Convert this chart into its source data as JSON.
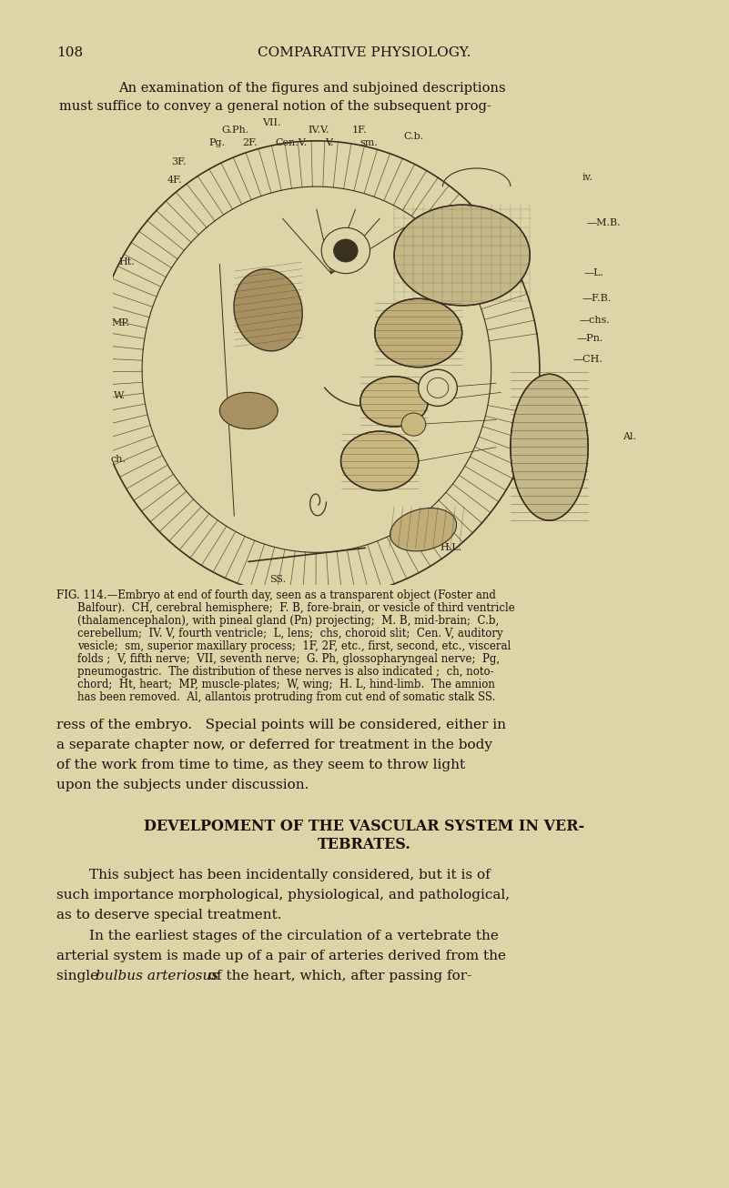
{
  "bg_color": "#ddd5a8",
  "page_number": "108",
  "header_title": "COMPARATIVE PHYSIOLOGY.",
  "intro_line1": "An examination of the figures and subjoined descriptions",
  "intro_line2": "must suffice to convey a general notion of the subsequent prog-",
  "fig_caption_line1": "FIG. 114.—Embryo at end of fourth day, seen as a transparent object (Foster and",
  "fig_caption_line2": "Balfour).  CH, cerebral hemisphere;  F. B, fore-brain, or vesicle of third ventricle",
  "fig_caption_line3": "(thalamencephalon), with pineal gland (Pn) projecting;  M. B, mid-brain;  C.b,",
  "fig_caption_line4": "cerebellum;  IV. V, fourth ventricle;  L, lens;  chs, choroid slit;  Cen. V, auditory",
  "fig_caption_line5": "vesicle;  sm, superior maxillary process;  1F, 2F, etc., first, second, etc., visceral",
  "fig_caption_line6": "folds ;  V, fifth nerve;  VII, seventh nerve;  G. Ph, glossopharyngeal nerve;  Pg,",
  "fig_caption_line7": "pneumogastric.   The distribution of these nerves is also indicated ;  ch, noto-",
  "fig_caption_line8": "chord;  Ht, heart;  MP, muscle-plates;  W, wing;  H. L, hind-limb.  The amnion",
  "fig_caption_line9": "has been removed.   Al, allantois protruding from cut end of somatic stalk SS.",
  "p1_line1": "ress of the embryo.   Special points will be considered, either in",
  "p1_line2": "a separate chapter now, or deferred for treatment in the body",
  "p1_line3": "of the work from time to time, as they seem to throw light",
  "p1_line4": "upon the subjects under discussion.",
  "heading1": "DEVELPOMENT OF THE VASCULAR SYSTEM IN VER-",
  "heading2": "TEBRATES.",
  "p2_line1": "This subject has been incidentally considered, but it is of",
  "p2_line2": "such importance morphological, physiological, and pathological,",
  "p2_line3": "as to deserve special treatment.",
  "p3_line1": "In the earliest stages of the circulation of a vertebrate the",
  "p3_line2": "arterial system is made up of a pair of arteries derived from the",
  "p3_line3_a": "single ",
  "p3_line3_b": "bulbus arteriosus",
  "p3_line3_c": " of the heart, which, after passing for-",
  "text_color": "#1a1208",
  "dark_color": "#3a3020",
  "label_color": "#2a2010"
}
